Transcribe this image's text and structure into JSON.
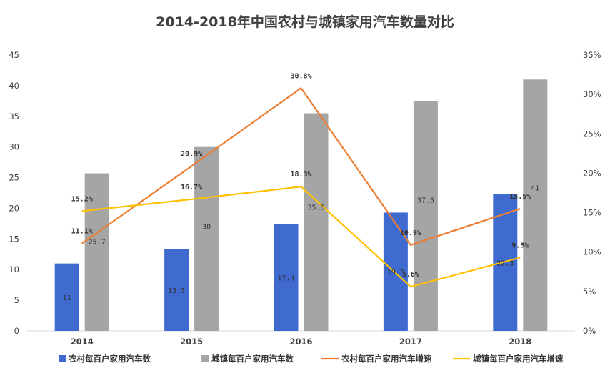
{
  "chart_data": {
    "type": "bar",
    "title": "2014-2018年中国农村与城镇家用汽车数量对比",
    "categories": [
      "2014",
      "2015",
      "2016",
      "2017",
      "2018"
    ],
    "y_left": {
      "min": 0,
      "max": 45,
      "step": 5,
      "ticks": [
        "0",
        "5",
        "10",
        "15",
        "20",
        "25",
        "30",
        "35",
        "40",
        "45"
      ]
    },
    "y_right": {
      "min": 0,
      "max": 35,
      "step": 5,
      "ticks": [
        "0%",
        "5%",
        "10%",
        "15%",
        "20%",
        "25%",
        "30%",
        "35%"
      ]
    },
    "grid": false,
    "legend_position": "bottom",
    "series": [
      {
        "name": "农村每百户家用汽车数",
        "kind": "bar",
        "axis": "left",
        "color": "#3F6BD1",
        "values": [
          11,
          13.3,
          17.4,
          19.3,
          22.3
        ],
        "labels": [
          "11",
          "13.3",
          "17.4",
          "19.3",
          "22.3"
        ]
      },
      {
        "name": "城镇每百户家用汽车数",
        "kind": "bar",
        "axis": "left",
        "color": "#A5A5A5",
        "values": [
          25.7,
          30,
          35.5,
          37.5,
          41
        ],
        "labels": [
          "25.7",
          "30",
          "35.5",
          "37.5",
          "41"
        ]
      },
      {
        "name": "农村每百户家用汽车增速",
        "kind": "line",
        "axis": "right",
        "color": "#ED7D31",
        "values": [
          11.1,
          20.9,
          30.8,
          10.9,
          15.5
        ],
        "labels": [
          "11.1%",
          "20.9%",
          "30.8%",
          "10.9%",
          "15.5%"
        ]
      },
      {
        "name": "城镇每百户家用汽车增速",
        "kind": "line",
        "axis": "right",
        "color": "#FFC000",
        "values": [
          15.2,
          16.7,
          18.3,
          5.6,
          9.3
        ],
        "labels": [
          "15.2%",
          "16.7%",
          "18.3%",
          "5.6%",
          "9.3%"
        ]
      }
    ]
  }
}
